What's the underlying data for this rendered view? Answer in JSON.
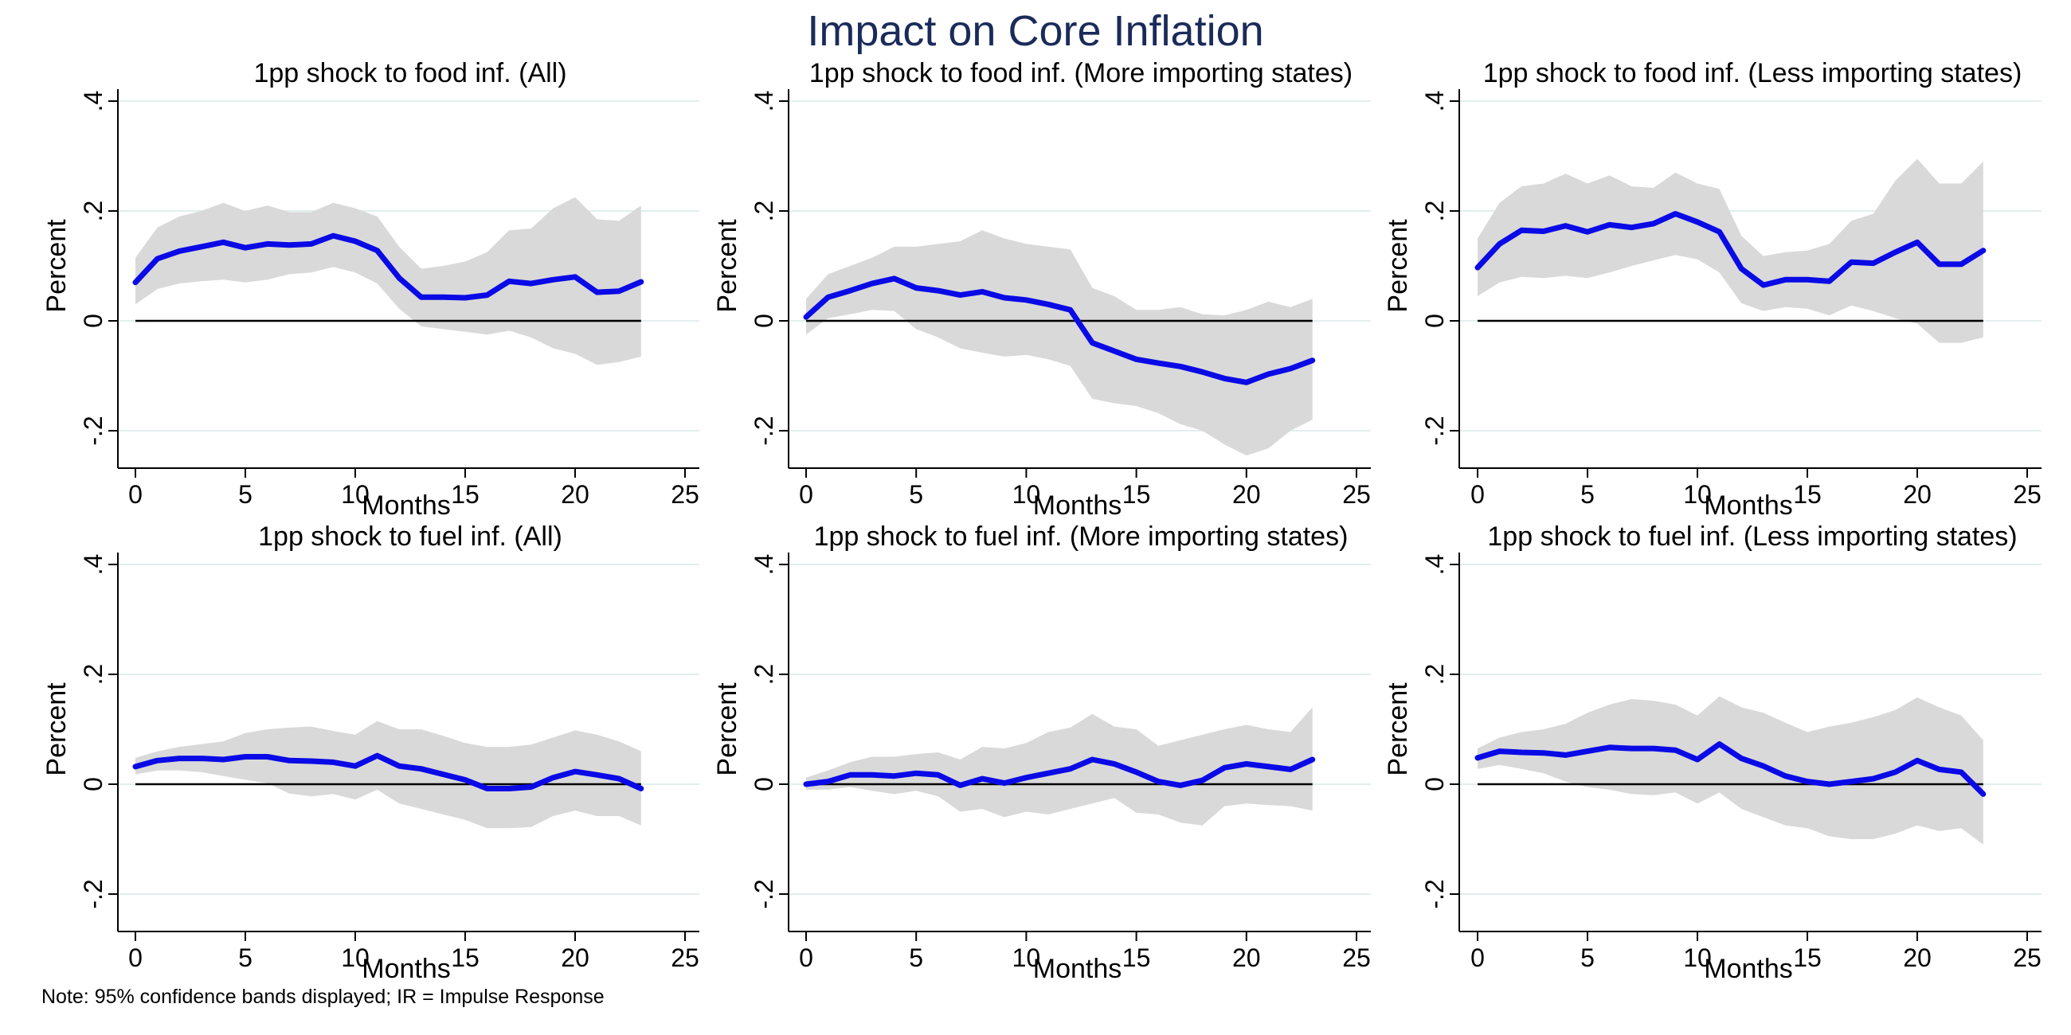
{
  "title": "Impact on Core Inflation",
  "note": "Note: 95% confidence bands displayed; IR = Impulse Response",
  "colors": {
    "line": "#0a0ae6",
    "band": "#d9d9d9",
    "zero_line": "#000000",
    "grid": "#e3eeee",
    "title": "#1a2b5a"
  },
  "chart_data": [
    {
      "type": "line",
      "title": "1pp shock to food inf. (All)",
      "xlabel": "Months",
      "ylabel": "Percent",
      "xlim": [
        0,
        25
      ],
      "ylim": [
        -0.2,
        0.4
      ],
      "x_ticks": [
        "0",
        "5",
        "10",
        "15",
        "20",
        "25"
      ],
      "y_ticks": [
        "-.2",
        "0",
        ".2",
        ".4"
      ],
      "grid": true,
      "x": [
        0,
        1,
        2,
        3,
        4,
        5,
        6,
        7,
        8,
        9,
        10,
        11,
        12,
        13,
        14,
        15,
        16,
        17,
        18,
        19,
        20,
        21,
        22,
        23
      ],
      "series": [
        {
          "values": [
            0.07,
            0.113,
            0.127,
            0.135,
            0.143,
            0.133,
            0.14,
            0.138,
            0.14,
            0.155,
            0.145,
            0.128,
            0.078,
            0.043,
            0.043,
            0.042,
            0.047,
            0.072,
            0.068,
            0.075,
            0.08,
            0.052,
            0.054,
            0.071
          ]
        }
      ],
      "band": {
        "upper": [
          0.115,
          0.17,
          0.19,
          0.2,
          0.215,
          0.2,
          0.21,
          0.198,
          0.198,
          0.215,
          0.205,
          0.19,
          0.135,
          0.095,
          0.1,
          0.108,
          0.125,
          0.165,
          0.168,
          0.205,
          0.225,
          0.185,
          0.182,
          0.21
        ],
        "lower": [
          0.03,
          0.058,
          0.068,
          0.072,
          0.075,
          0.07,
          0.075,
          0.085,
          0.088,
          0.098,
          0.088,
          0.068,
          0.022,
          -0.01,
          -0.015,
          -0.02,
          -0.025,
          -0.018,
          -0.03,
          -0.05,
          -0.06,
          -0.08,
          -0.075,
          -0.065
        ]
      }
    },
    {
      "type": "line",
      "title": "1pp shock to food inf. (More importing states)",
      "xlabel": "Months",
      "ylabel": "Percent",
      "xlim": [
        0,
        25
      ],
      "ylim": [
        -0.2,
        0.4
      ],
      "x_ticks": [
        "0",
        "5",
        "10",
        "15",
        "20",
        "25"
      ],
      "y_ticks": [
        "-.2",
        "0",
        ".2",
        ".4"
      ],
      "grid": true,
      "x": [
        0,
        1,
        2,
        3,
        4,
        5,
        6,
        7,
        8,
        9,
        10,
        11,
        12,
        13,
        14,
        15,
        16,
        17,
        18,
        19,
        20,
        21,
        22,
        23
      ],
      "series": [
        {
          "values": [
            0.007,
            0.043,
            0.055,
            0.068,
            0.077,
            0.06,
            0.055,
            0.047,
            0.053,
            0.042,
            0.038,
            0.03,
            0.02,
            -0.04,
            -0.055,
            -0.07,
            -0.077,
            -0.083,
            -0.093,
            -0.105,
            -0.112,
            -0.097,
            -0.087,
            -0.072
          ]
        }
      ],
      "band": {
        "upper": [
          0.04,
          0.085,
          0.1,
          0.115,
          0.135,
          0.135,
          0.14,
          0.145,
          0.165,
          0.15,
          0.14,
          0.135,
          0.13,
          0.06,
          0.045,
          0.02,
          0.02,
          0.025,
          0.012,
          0.01,
          0.02,
          0.035,
          0.025,
          0.04
        ],
        "lower": [
          -0.025,
          0.005,
          0.012,
          0.02,
          0.018,
          -0.015,
          -0.03,
          -0.05,
          -0.058,
          -0.065,
          -0.062,
          -0.07,
          -0.082,
          -0.142,
          -0.15,
          -0.155,
          -0.168,
          -0.188,
          -0.2,
          -0.225,
          -0.245,
          -0.232,
          -0.2,
          -0.18
        ]
      }
    },
    {
      "type": "line",
      "title": "1pp shock to food inf. (Less importing states)",
      "xlabel": "Months",
      "ylabel": "Percent",
      "xlim": [
        0,
        25
      ],
      "ylim": [
        -0.2,
        0.4
      ],
      "x_ticks": [
        "0",
        "5",
        "10",
        "15",
        "20",
        "25"
      ],
      "y_ticks": [
        "-.2",
        "0",
        ".2",
        ".4"
      ],
      "grid": true,
      "x": [
        0,
        1,
        2,
        3,
        4,
        5,
        6,
        7,
        8,
        9,
        10,
        11,
        12,
        13,
        14,
        15,
        16,
        17,
        18,
        19,
        20,
        21,
        22,
        23
      ],
      "series": [
        {
          "values": [
            0.097,
            0.14,
            0.165,
            0.163,
            0.173,
            0.162,
            0.175,
            0.17,
            0.177,
            0.195,
            0.18,
            0.162,
            0.095,
            0.065,
            0.075,
            0.075,
            0.072,
            0.107,
            0.105,
            0.125,
            0.143,
            0.103,
            0.103,
            0.128
          ]
        }
      ],
      "band": {
        "upper": [
          0.15,
          0.215,
          0.245,
          0.25,
          0.268,
          0.25,
          0.265,
          0.245,
          0.242,
          0.27,
          0.25,
          0.24,
          0.155,
          0.118,
          0.125,
          0.128,
          0.14,
          0.182,
          0.195,
          0.255,
          0.295,
          0.25,
          0.25,
          0.29
        ],
        "lower": [
          0.045,
          0.07,
          0.08,
          0.078,
          0.082,
          0.078,
          0.088,
          0.1,
          0.11,
          0.12,
          0.112,
          0.088,
          0.032,
          0.018,
          0.025,
          0.022,
          0.01,
          0.028,
          0.018,
          0.005,
          -0.005,
          -0.04,
          -0.04,
          -0.03
        ]
      }
    },
    {
      "type": "line",
      "title": "1pp shock to fuel inf. (All)",
      "xlabel": "Months",
      "ylabel": "Percent",
      "xlim": [
        0,
        25
      ],
      "ylim": [
        -0.2,
        0.4
      ],
      "x_ticks": [
        "0",
        "5",
        "10",
        "15",
        "20",
        "25"
      ],
      "y_ticks": [
        "-.2",
        "0",
        ".2",
        ".4"
      ],
      "grid": true,
      "x": [
        0,
        1,
        2,
        3,
        4,
        5,
        6,
        7,
        8,
        9,
        10,
        11,
        12,
        13,
        14,
        15,
        16,
        17,
        18,
        19,
        20,
        21,
        22,
        23
      ],
      "series": [
        {
          "values": [
            0.032,
            0.043,
            0.047,
            0.047,
            0.045,
            0.05,
            0.05,
            0.043,
            0.042,
            0.04,
            0.033,
            0.052,
            0.033,
            0.028,
            0.018,
            0.008,
            -0.008,
            -0.008,
            -0.005,
            0.012,
            0.023,
            0.017,
            0.01,
            -0.008
          ]
        }
      ],
      "band": {
        "upper": [
          0.048,
          0.06,
          0.068,
          0.073,
          0.078,
          0.093,
          0.1,
          0.103,
          0.105,
          0.097,
          0.09,
          0.115,
          0.1,
          0.1,
          0.088,
          0.075,
          0.068,
          0.068,
          0.072,
          0.085,
          0.098,
          0.09,
          0.078,
          0.06
        ],
        "lower": [
          0.018,
          0.025,
          0.025,
          0.022,
          0.015,
          0.008,
          0.002,
          -0.017,
          -0.022,
          -0.018,
          -0.028,
          -0.01,
          -0.035,
          -0.045,
          -0.055,
          -0.065,
          -0.08,
          -0.08,
          -0.078,
          -0.058,
          -0.048,
          -0.058,
          -0.058,
          -0.075
        ]
      }
    },
    {
      "type": "line",
      "title": "1pp shock to fuel inf. (More importing states)",
      "xlabel": "Months",
      "ylabel": "Percent",
      "xlim": [
        0,
        25
      ],
      "ylim": [
        -0.2,
        0.4
      ],
      "x_ticks": [
        "0",
        "5",
        "10",
        "15",
        "20",
        "25"
      ],
      "y_ticks": [
        "-.2",
        "0",
        ".2",
        ".4"
      ],
      "grid": true,
      "x": [
        0,
        1,
        2,
        3,
        4,
        5,
        6,
        7,
        8,
        9,
        10,
        11,
        12,
        13,
        14,
        15,
        16,
        17,
        18,
        19,
        20,
        21,
        22,
        23
      ],
      "series": [
        {
          "values": [
            0,
            0.005,
            0.017,
            0.017,
            0.015,
            0.02,
            0.017,
            -0.002,
            0.01,
            0.002,
            0.012,
            0.02,
            0.028,
            0.045,
            0.037,
            0.022,
            0.005,
            -0.002,
            0.007,
            0.03,
            0.037,
            0.032,
            0.027,
            0.045
          ]
        }
      ],
      "band": {
        "upper": [
          0.012,
          0.025,
          0.04,
          0.05,
          0.05,
          0.055,
          0.058,
          0.045,
          0.068,
          0.065,
          0.075,
          0.095,
          0.103,
          0.128,
          0.105,
          0.1,
          0.07,
          0.08,
          0.09,
          0.1,
          0.108,
          0.1,
          0.095,
          0.14
        ],
        "lower": [
          -0.01,
          -0.01,
          -0.005,
          -0.012,
          -0.018,
          -0.012,
          -0.022,
          -0.05,
          -0.045,
          -0.06,
          -0.05,
          -0.055,
          -0.045,
          -0.035,
          -0.025,
          -0.052,
          -0.055,
          -0.07,
          -0.075,
          -0.04,
          -0.035,
          -0.038,
          -0.04,
          -0.048
        ]
      }
    },
    {
      "type": "line",
      "title": "1pp shock to fuel inf. (Less importing states)",
      "xlabel": "Months",
      "ylabel": "Percent",
      "xlim": [
        0,
        25
      ],
      "ylim": [
        -0.2,
        0.4
      ],
      "x_ticks": [
        "0",
        "5",
        "10",
        "15",
        "20",
        "25"
      ],
      "y_ticks": [
        "-.2",
        "0",
        ".2",
        ".4"
      ],
      "grid": true,
      "x": [
        0,
        1,
        2,
        3,
        4,
        5,
        6,
        7,
        8,
        9,
        10,
        11,
        12,
        13,
        14,
        15,
        16,
        17,
        18,
        19,
        20,
        21,
        22,
        23
      ],
      "series": [
        {
          "values": [
            0.048,
            0.06,
            0.058,
            0.057,
            0.053,
            0.06,
            0.067,
            0.065,
            0.065,
            0.062,
            0.045,
            0.073,
            0.047,
            0.033,
            0.015,
            0.005,
            0,
            0.005,
            0.01,
            0.022,
            0.043,
            0.027,
            0.022,
            -0.018
          ]
        }
      ],
      "band": {
        "upper": [
          0.065,
          0.085,
          0.095,
          0.1,
          0.11,
          0.13,
          0.145,
          0.155,
          0.152,
          0.145,
          0.125,
          0.16,
          0.14,
          0.13,
          0.112,
          0.095,
          0.105,
          0.112,
          0.122,
          0.135,
          0.158,
          0.14,
          0.125,
          0.08
        ],
        "lower": [
          0.028,
          0.035,
          0.028,
          0.02,
          0.005,
          -0.005,
          -0.01,
          -0.018,
          -0.02,
          -0.015,
          -0.035,
          -0.015,
          -0.045,
          -0.06,
          -0.075,
          -0.08,
          -0.095,
          -0.1,
          -0.1,
          -0.09,
          -0.075,
          -0.085,
          -0.08,
          -0.11
        ]
      }
    }
  ]
}
